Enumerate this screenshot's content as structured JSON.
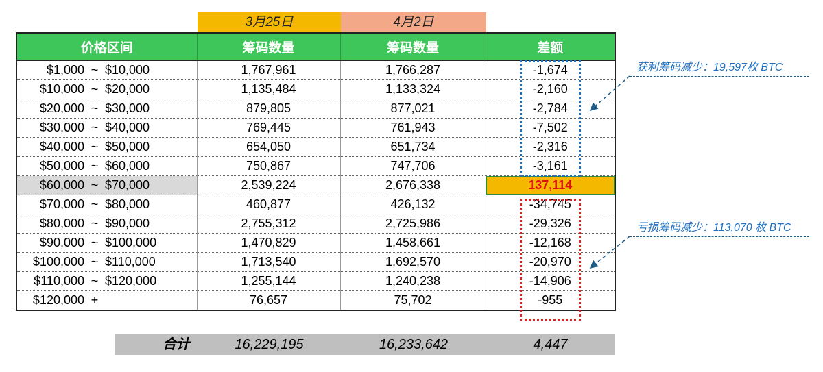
{
  "dates": [
    "3月25日",
    "4月2日"
  ],
  "headers": [
    "价格区间",
    "筹码数量",
    "筹码数量",
    "差额"
  ],
  "rows": [
    {
      "lo": "$1,000",
      "sep": "~",
      "hi": "$10,000",
      "a": "1,767,961",
      "b": "1,766,287",
      "diff": "-1,674"
    },
    {
      "lo": "$10,000",
      "sep": "~",
      "hi": "$20,000",
      "a": "1,135,484",
      "b": "1,133,324",
      "diff": "-2,160"
    },
    {
      "lo": "$20,000",
      "sep": "~",
      "hi": "$30,000",
      "a": "879,805",
      "b": "877,021",
      "diff": "-2,784"
    },
    {
      "lo": "$30,000",
      "sep": "~",
      "hi": "$40,000",
      "a": "769,445",
      "b": "761,943",
      "diff": "-7,502"
    },
    {
      "lo": "$40,000",
      "sep": "~",
      "hi": "$50,000",
      "a": "654,050",
      "b": "651,734",
      "diff": "-2,316"
    },
    {
      "lo": "$50,000",
      "sep": "~",
      "hi": "$60,000",
      "a": "750,867",
      "b": "747,706",
      "diff": "-3,161"
    },
    {
      "lo": "$60,000",
      "sep": "~",
      "hi": "$70,000",
      "a": "2,539,224",
      "b": "2,676,338",
      "diff": "137,114"
    },
    {
      "lo": "$70,000",
      "sep": "~",
      "hi": "$80,000",
      "a": "460,877",
      "b": "426,132",
      "diff": "-34,745"
    },
    {
      "lo": "$80,000",
      "sep": "~",
      "hi": "$90,000",
      "a": "2,755,312",
      "b": "2,725,986",
      "diff": "-29,326"
    },
    {
      "lo": "$90,000",
      "sep": "~",
      "hi": "$100,000",
      "a": "1,470,829",
      "b": "1,458,661",
      "diff": "-12,168"
    },
    {
      "lo": "$100,000",
      "sep": "~",
      "hi": "$110,000",
      "a": "1,713,540",
      "b": "1,692,570",
      "diff": "-20,970"
    },
    {
      "lo": "$110,000",
      "sep": "~",
      "hi": "$120,000",
      "a": "1,255,144",
      "b": "1,240,238",
      "diff": "-14,906"
    },
    {
      "lo": "$120,000",
      "sep": "+",
      "hi": "",
      "a": "76,657",
      "b": "75,702",
      "diff": "-955"
    }
  ],
  "highlight_row": 6,
  "notes": {
    "profit": "获利筹码减少：19,597枚 BTC",
    "loss": "亏损筹码减少：113,070 枚 BTC"
  },
  "totals": {
    "label": "合计",
    "a": "16,229,195",
    "b": "16,233,642",
    "diff": "4,447"
  },
  "colors": {
    "header_green": "#3fc65a",
    "date1_bg": "#f5b800",
    "date2_bg": "#f3a888",
    "highlight_diff_bg": "#f5b800",
    "highlight_diff_text": "#e01010",
    "profit_box": "#1f6fc0",
    "loss_box": "#e02020",
    "totals_bg": "#bfbfbf"
  }
}
